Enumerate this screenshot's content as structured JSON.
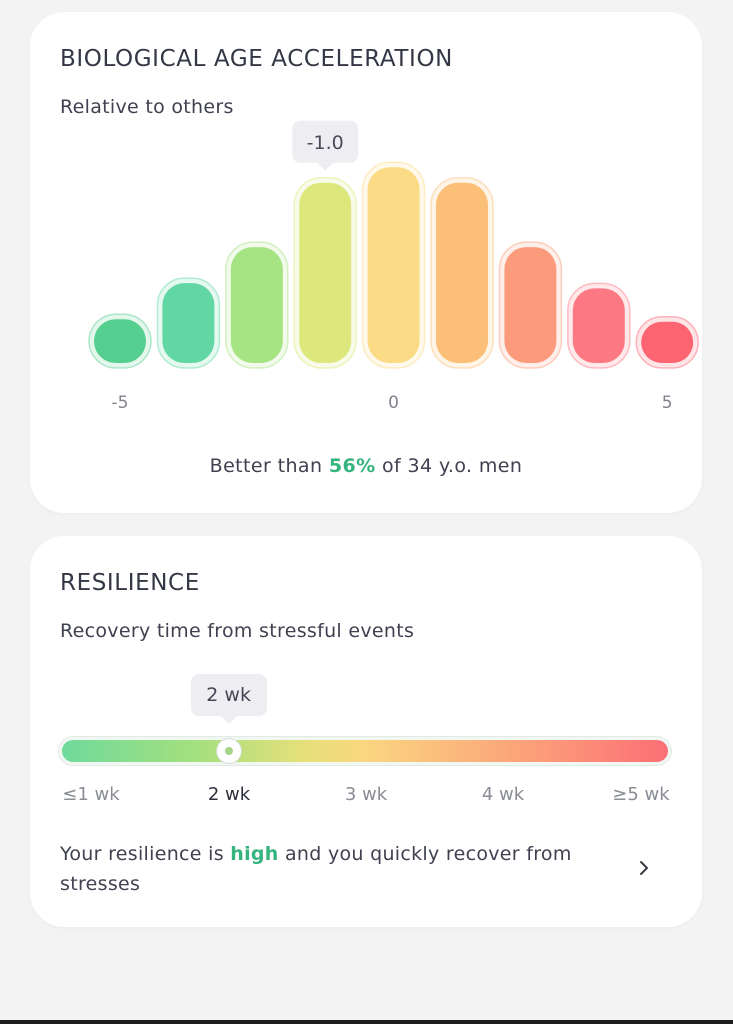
{
  "bio_age": {
    "title": "BIOLOGICAL AGE ACCELERATION",
    "subtitle": "Relative to others",
    "summary_prefix": "Better than ",
    "summary_percent": "56%",
    "summary_suffix": " of 34 y.o. men",
    "accent_color": "#35b57d"
  },
  "chart_data": {
    "type": "bar",
    "title": "BIOLOGICAL AGE ACCELERATION",
    "subtitle": "Relative to others",
    "categories": [
      "-5",
      "",
      "",
      "",
      "0",
      "",
      "",
      "",
      "5"
    ],
    "values": [
      1.7,
      3.1,
      4.5,
      7.0,
      7.6,
      7.0,
      4.5,
      2.9,
      1.6
    ],
    "bar_colors": [
      "#54cf90",
      "#62d7a4",
      "#a6e382",
      "#dce87b",
      "#fbdb85",
      "#fbbf78",
      "#fb9b7b",
      "#fc7882",
      "#fb6470"
    ],
    "ylim": [
      0,
      8
    ],
    "x_ticks": [
      "-5",
      "0",
      "5"
    ],
    "highlighted_index": 3,
    "highlight_label": "-1.0",
    "grid": false,
    "legend": "none"
  },
  "resilience": {
    "title": "RESILIENCE",
    "subtitle": "Recovery time from stressful events",
    "bubble_label": "2 wk",
    "scale_position": 0.275,
    "ticks": [
      "≤1 wk",
      "2 wk",
      "3 wk",
      "4 wk",
      "≥5 wk"
    ],
    "active_tick": 1,
    "desc_prefix": "Your resilience is ",
    "desc_highlight": "high",
    "desc_suffix": " and you quickly recover from stresses",
    "accent_color": "#35b57d",
    "chevron_icon": "chevron-right-icon"
  }
}
